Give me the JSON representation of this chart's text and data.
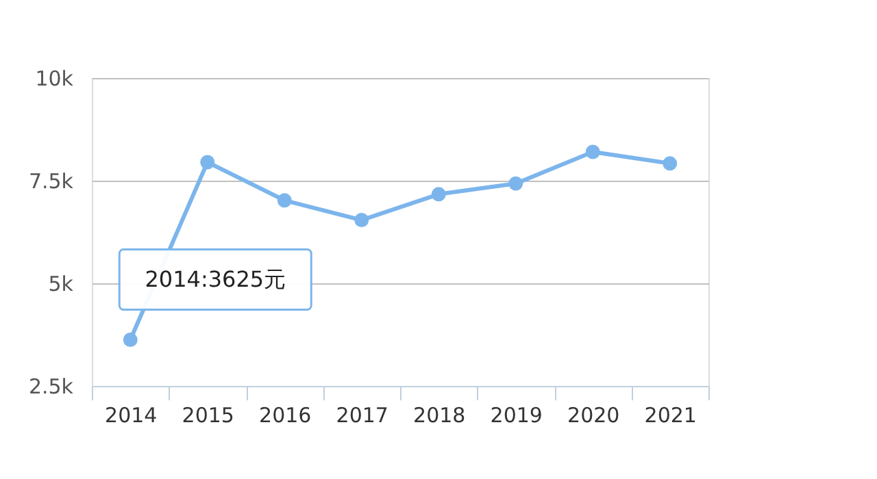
{
  "chart_data": {
    "type": "line",
    "categories": [
      "2014",
      "2015",
      "2016",
      "2017",
      "2018",
      "2019",
      "2020",
      "2021"
    ],
    "series": [
      {
        "color": "#7cb5ec",
        "values": [
          3625,
          7950,
          7020,
          6540,
          7170,
          7430,
          8200,
          7920
        ]
      }
    ],
    "ylim": [
      2500,
      10000
    ],
    "yticks": [
      {
        "value": 2500,
        "label": "2.5k"
      },
      {
        "value": 5000,
        "label": "5k"
      },
      {
        "value": 7500,
        "label": "7.5k"
      },
      {
        "value": 10000,
        "label": "10k"
      }
    ],
    "grid": "y",
    "marker": "circle",
    "line_style": "solid",
    "annotations": [
      {
        "text": "2014:3625元",
        "x": "2014",
        "y": 3625
      }
    ]
  }
}
